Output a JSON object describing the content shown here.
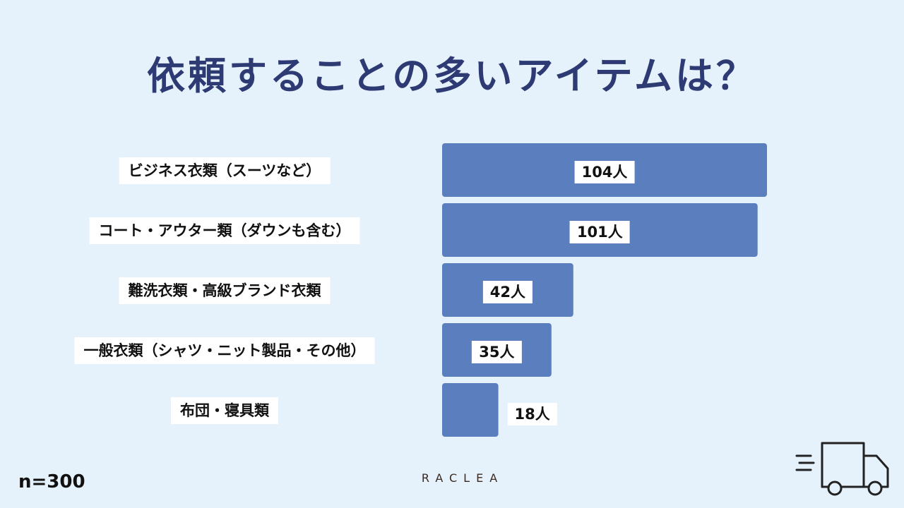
{
  "title": "依頼することの多いアイテムは？",
  "sample_size": "n=300",
  "brand": "RACLEA",
  "colors": {
    "background": "#e6f2fb",
    "bar": "#5b7fbe",
    "title": "#2e3a73"
  },
  "icons": {
    "bottom_right": "delivery-truck-icon"
  },
  "chart_data": {
    "type": "bar",
    "orientation": "horizontal",
    "title": "依頼することの多いアイテムは？",
    "categories": [
      "ビジネス衣類（スーツなど）",
      "コート・アウター類（ダウンも含む）",
      "難洗衣類・高級ブランド衣類",
      "一般衣類（シャツ・ニット製品・その他）",
      "布団・寝具類"
    ],
    "values": [
      104,
      101,
      42,
      35,
      18
    ],
    "value_labels": [
      "104人",
      "101人",
      "42人",
      "35人",
      "18人"
    ],
    "unit": "人",
    "xlim": [
      0,
      104
    ],
    "grid": false
  }
}
